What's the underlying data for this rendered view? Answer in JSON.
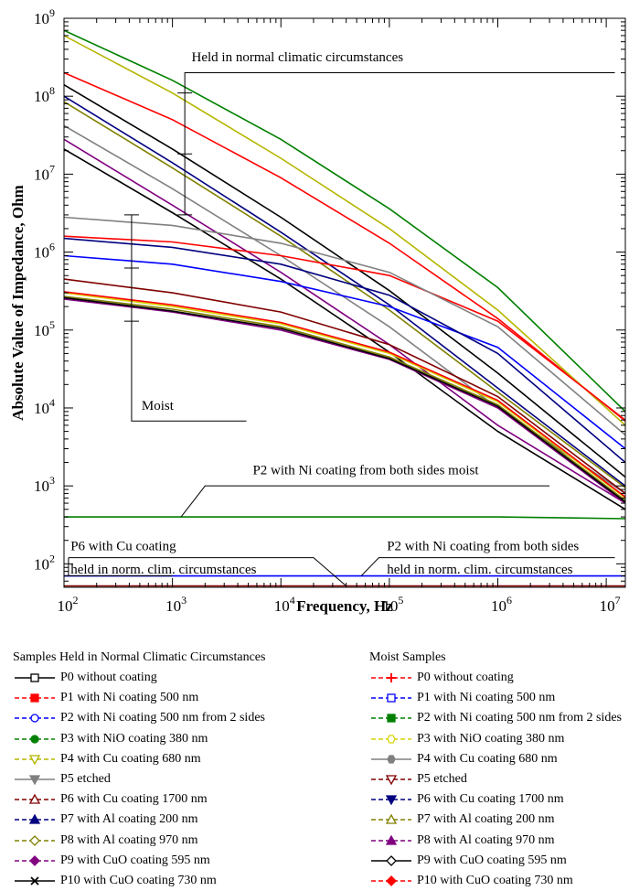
{
  "chart_data": {
    "type": "line",
    "xlabel": "Frequency, Hz",
    "ylabel": "Absolute Value of Impedance, Ohm",
    "x_scale": "log",
    "y_scale": "log",
    "xlim": [
      100,
      15000000
    ],
    "ylim": [
      50,
      1000000000
    ],
    "x_ticks": [
      {
        "value": 100,
        "base": "10",
        "exp": "2"
      },
      {
        "value": 1000,
        "base": "10",
        "exp": "3"
      },
      {
        "value": 10000,
        "base": "10",
        "exp": "4"
      },
      {
        "value": 100000,
        "base": "10",
        "exp": "5"
      },
      {
        "value": 1000000,
        "base": "10",
        "exp": "6"
      },
      {
        "value": 10000000,
        "base": "10",
        "exp": "7"
      }
    ],
    "y_ticks": [
      {
        "value": 100,
        "base": "10",
        "exp": "2"
      },
      {
        "value": 1000,
        "base": "10",
        "exp": "3"
      },
      {
        "value": 10000,
        "base": "10",
        "exp": "4"
      },
      {
        "value": 100000,
        "base": "10",
        "exp": "5"
      },
      {
        "value": 1000000,
        "base": "10",
        "exp": "6"
      },
      {
        "value": 10000000,
        "base": "10",
        "exp": "7"
      },
      {
        "value": 100000000,
        "base": "10",
        "exp": "8"
      },
      {
        "value": 1000000000,
        "base": "10",
        "exp": "9"
      }
    ],
    "grid": false,
    "legend_placement": "below",
    "annotations": [
      {
        "text": "Held in normal climatic circumstances",
        "x": 1500,
        "y": 280000000
      },
      {
        "text": "Moist",
        "x": 520,
        "y": 9500
      },
      {
        "text": "P2 with Ni coating from both sides moist",
        "x": 5500,
        "y": 1400
      },
      {
        "text": "P6 with Cu coating",
        "x": 115,
        "y": 150
      },
      {
        "text": "held in norm. clim. circumstances",
        "x": 115,
        "y": 75
      },
      {
        "text": "P2 with Ni coating from both sides",
        "x": 95000,
        "y": 150
      },
      {
        "text": "held in norm. clim. circumstances",
        "x": 95000,
        "y": 75
      }
    ],
    "legend_groups": [
      {
        "title": "Samples Held in Normal Climatic Circumstances",
        "entries": [
          {
            "label": "P0 without coating",
            "color": "#000000",
            "marker": "square-open",
            "dash": "solid"
          },
          {
            "label": "P1 with Ni coating 500 nm",
            "color": "#ff0000",
            "marker": "square",
            "dash": "dash"
          },
          {
            "label": "P2 with Ni coating 500 nm from 2 sides",
            "color": "#0000ff",
            "marker": "circle-open",
            "dash": "dash"
          },
          {
            "label": "P3 with NiO coating 380 nm",
            "color": "#008000",
            "marker": "circle",
            "dash": "dash"
          },
          {
            "label": "P4 with Cu coating 680 nm",
            "color": "#b5b500",
            "marker": "triangle-down-open",
            "dash": "dash"
          },
          {
            "label": "P5 etched",
            "color": "#808080",
            "marker": "triangle-down",
            "dash": "solid"
          },
          {
            "label": "P6 with Cu coating 1700 nm",
            "color": "#800000",
            "marker": "triangle-open",
            "dash": "dash"
          },
          {
            "label": "P7 with Al coating 200 nm",
            "color": "#000080",
            "marker": "triangle",
            "dash": "dash"
          },
          {
            "label": "P8 with Al coating 970 nm",
            "color": "#808000",
            "marker": "diamond-open",
            "dash": "dash"
          },
          {
            "label": "P9 with CuO coating 595 nm",
            "color": "#800080",
            "marker": "diamond",
            "dash": "dash"
          },
          {
            "label": "P10 with CuO coating 730 nm",
            "color": "#000000",
            "marker": "x",
            "dash": "solid"
          }
        ]
      },
      {
        "title": "Moist Samples",
        "entries": [
          {
            "label": "P0 without coating",
            "color": "#ff0000",
            "marker": "plus",
            "dash": "dash"
          },
          {
            "label": "P1 with Ni coating 500 nm",
            "color": "#0000ff",
            "marker": "square-open",
            "dash": "dash"
          },
          {
            "label": "P2 with Ni coating 500 nm from 2 sides",
            "color": "#008000",
            "marker": "square",
            "dash": "dash"
          },
          {
            "label": "P3 with NiO coating 380 nm",
            "color": "#d4d400",
            "marker": "hexagon-open",
            "dash": "dash"
          },
          {
            "label": "P4 with Cu coating 680 nm",
            "color": "#808080",
            "marker": "hexagon",
            "dash": "solid"
          },
          {
            "label": "P5 etched",
            "color": "#800000",
            "marker": "triangle-down-open",
            "dash": "dash"
          },
          {
            "label": "P6 with Cu coating 1700 nm",
            "color": "#000080",
            "marker": "triangle-down",
            "dash": "dash"
          },
          {
            "label": "P7 with Al coating 200 nm",
            "color": "#808000",
            "marker": "triangle-open",
            "dash": "dash"
          },
          {
            "label": "P8 with Al coating 970 nm",
            "color": "#800080",
            "marker": "triangle",
            "dash": "dash"
          },
          {
            "label": "P9 with CuO coating 595 nm",
            "color": "#000000",
            "marker": "diamond-open",
            "dash": "solid"
          },
          {
            "label": "P10 with CuO coating 730 nm",
            "color": "#ff0000",
            "marker": "diamond",
            "dash": "dash"
          }
        ]
      }
    ],
    "series": [
      {
        "group": 0,
        "index": 0,
        "color": "#000000",
        "x": [
          100,
          1000,
          10000,
          100000,
          1000000,
          15000000
        ],
        "y": [
          140000000,
          21000000,
          2800000,
          320000,
          28000,
          1300
        ]
      },
      {
        "group": 0,
        "index": 1,
        "color": "#ff0000",
        "x": [
          100,
          1000,
          10000,
          100000,
          1000000,
          15000000
        ],
        "y": [
          200000000,
          50000000,
          9000000,
          1300000,
          140000,
          6800
        ]
      },
      {
        "group": 0,
        "index": 2,
        "color": "#0000ff",
        "x": [
          100,
          300000000
        ],
        "y": [
          70,
          70
        ]
      },
      {
        "group": 0,
        "index": 3,
        "color": "#008000",
        "x": [
          100,
          1000,
          10000,
          100000,
          1000000,
          15000000
        ],
        "y": [
          700000000,
          160000000,
          28000000,
          3600000,
          350000,
          9000
        ]
      },
      {
        "group": 0,
        "index": 4,
        "color": "#b5b500",
        "x": [
          100,
          1000,
          10000,
          100000,
          1000000,
          15000000
        ],
        "y": [
          600000000,
          110000000,
          16000000,
          2000000,
          180000,
          6000
        ]
      },
      {
        "group": 0,
        "index": 5,
        "color": "#808080",
        "x": [
          100,
          1000,
          10000,
          100000,
          1000000,
          15000000
        ],
        "y": [
          42000000,
          6500000,
          900000,
          110000,
          10000,
          800
        ]
      },
      {
        "group": 0,
        "index": 6,
        "color": "#800000",
        "x": [
          100,
          300000000
        ],
        "y": [
          52,
          52
        ]
      },
      {
        "group": 0,
        "index": 7,
        "color": "#000080",
        "x": [
          100,
          1000,
          10000,
          100000,
          1000000,
          15000000
        ],
        "y": [
          100000000,
          14000000,
          1800000,
          210000,
          18000,
          1000
        ]
      },
      {
        "group": 0,
        "index": 8,
        "color": "#808000",
        "x": [
          100,
          1000,
          10000,
          100000,
          1000000,
          15000000
        ],
        "y": [
          85000000,
          12000000,
          1600000,
          180000,
          16000,
          950
        ]
      },
      {
        "group": 0,
        "index": 9,
        "color": "#800080",
        "x": [
          100,
          1000,
          10000,
          100000,
          1000000,
          15000000
        ],
        "y": [
          28000000,
          4000000,
          550000,
          65000,
          6000,
          600
        ]
      },
      {
        "group": 0,
        "index": 10,
        "color": "#000000",
        "x": [
          100,
          1000,
          10000,
          100000,
          1000000,
          15000000
        ],
        "y": [
          21000000,
          3200000,
          450000,
          52000,
          5000,
          500
        ]
      },
      {
        "group": 1,
        "index": 0,
        "color": "#ff0000",
        "x": [
          100,
          1000,
          10000,
          100000,
          1000000,
          15000000
        ],
        "y": [
          1600000,
          1350000,
          900000,
          500000,
          130000,
          7000
        ]
      },
      {
        "group": 1,
        "index": 1,
        "color": "#0000ff",
        "x": [
          100,
          1000,
          10000,
          100000,
          1000000,
          15000000
        ],
        "y": [
          900000,
          700000,
          420000,
          200000,
          60000,
          3000
        ]
      },
      {
        "group": 1,
        "index": 2,
        "color": "#008000",
        "x": [
          100,
          1000,
          10000,
          100000,
          1000000,
          15000000
        ],
        "y": [
          400,
          400,
          400,
          400,
          400,
          380
        ]
      },
      {
        "group": 1,
        "index": 3,
        "color": "#d4d400",
        "x": [
          100,
          1000,
          10000,
          100000,
          1000000,
          15000000
        ],
        "y": [
          300000,
          200000,
          120000,
          50000,
          12000,
          700
        ]
      },
      {
        "group": 1,
        "index": 4,
        "color": "#808080",
        "x": [
          100,
          1000,
          10000,
          100000,
          1000000,
          15000000
        ],
        "y": [
          2800000,
          2200000,
          1300000,
          550000,
          110000,
          4500
        ]
      },
      {
        "group": 1,
        "index": 5,
        "color": "#800000",
        "x": [
          100,
          1000,
          10000,
          100000,
          1000000,
          15000000
        ],
        "y": [
          450000,
          300000,
          170000,
          65000,
          14000,
          800
        ]
      },
      {
        "group": 1,
        "index": 6,
        "color": "#000080",
        "x": [
          100,
          1000,
          10000,
          100000,
          1000000,
          15000000
        ],
        "y": [
          1500000,
          1150000,
          700000,
          280000,
          50000,
          2000
        ]
      },
      {
        "group": 1,
        "index": 7,
        "color": "#808000",
        "x": [
          100,
          1000,
          10000,
          100000,
          1000000,
          15000000
        ],
        "y": [
          270000,
          185000,
          110000,
          45000,
          11000,
          650
        ]
      },
      {
        "group": 1,
        "index": 8,
        "color": "#800080",
        "x": [
          100,
          1000,
          10000,
          100000,
          1000000,
          15000000
        ],
        "y": [
          250000,
          170000,
          100000,
          42000,
          10000,
          600
        ]
      },
      {
        "group": 1,
        "index": 9,
        "color": "#000000",
        "x": [
          100,
          1000,
          10000,
          100000,
          1000000,
          15000000
        ],
        "y": [
          260000,
          175000,
          105000,
          43000,
          10500,
          620
        ]
      },
      {
        "group": 1,
        "index": 10,
        "color": "#ff0000",
        "x": [
          100,
          1000,
          10000,
          100000,
          1000000,
          15000000
        ],
        "y": [
          310000,
          210000,
          125000,
          52000,
          12500,
          720
        ]
      }
    ]
  }
}
